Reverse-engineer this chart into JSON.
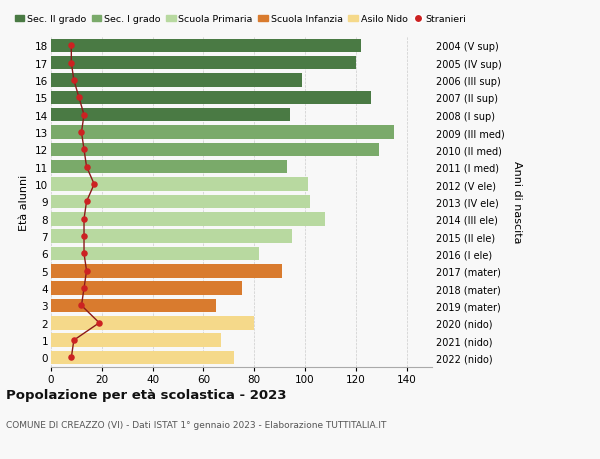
{
  "ages": [
    18,
    17,
    16,
    15,
    14,
    13,
    12,
    11,
    10,
    9,
    8,
    7,
    6,
    5,
    4,
    3,
    2,
    1,
    0
  ],
  "anni": [
    "2004 (V sup)",
    "2005 (IV sup)",
    "2006 (III sup)",
    "2007 (II sup)",
    "2008 (I sup)",
    "2009 (III med)",
    "2010 (II med)",
    "2011 (I med)",
    "2012 (V ele)",
    "2013 (IV ele)",
    "2014 (III ele)",
    "2015 (II ele)",
    "2016 (I ele)",
    "2017 (mater)",
    "2018 (mater)",
    "2019 (mater)",
    "2020 (nido)",
    "2021 (nido)",
    "2022 (nido)"
  ],
  "bar_values": [
    122,
    120,
    99,
    126,
    94,
    135,
    129,
    93,
    101,
    102,
    108,
    95,
    82,
    91,
    75,
    65,
    80,
    67,
    72
  ],
  "bar_colors": [
    "#4a7a44",
    "#4a7a44",
    "#4a7a44",
    "#4a7a44",
    "#4a7a44",
    "#7aaa6a",
    "#7aaa6a",
    "#7aaa6a",
    "#b8d9a0",
    "#b8d9a0",
    "#b8d9a0",
    "#b8d9a0",
    "#b8d9a0",
    "#d97b2e",
    "#d97b2e",
    "#d97b2e",
    "#f5d98a",
    "#f5d98a",
    "#f5d98a"
  ],
  "stranieri": [
    8,
    8,
    9,
    11,
    13,
    12,
    13,
    14,
    17,
    14,
    13,
    13,
    13,
    14,
    13,
    12,
    19,
    9,
    8
  ],
  "legend_labels": [
    "Sec. II grado",
    "Sec. I grado",
    "Scuola Primaria",
    "Scuola Infanzia",
    "Asilo Nido",
    "Stranieri"
  ],
  "legend_colors": [
    "#4a7a44",
    "#7aaa6a",
    "#b8d9a0",
    "#d97b2e",
    "#f5d98a",
    "#cc2222"
  ],
  "ylabel_left": "Età alunni",
  "ylabel_right": "Anni di nascita",
  "title": "Popolazione per età scolastica - 2023",
  "subtitle": "COMUNE DI CREAZZO (VI) - Dati ISTAT 1° gennaio 2023 - Elaborazione TUTTITALIA.IT",
  "xlim": [
    0,
    150
  ],
  "xticks": [
    0,
    20,
    40,
    60,
    80,
    100,
    120,
    140
  ],
  "background_color": "#f8f8f8"
}
